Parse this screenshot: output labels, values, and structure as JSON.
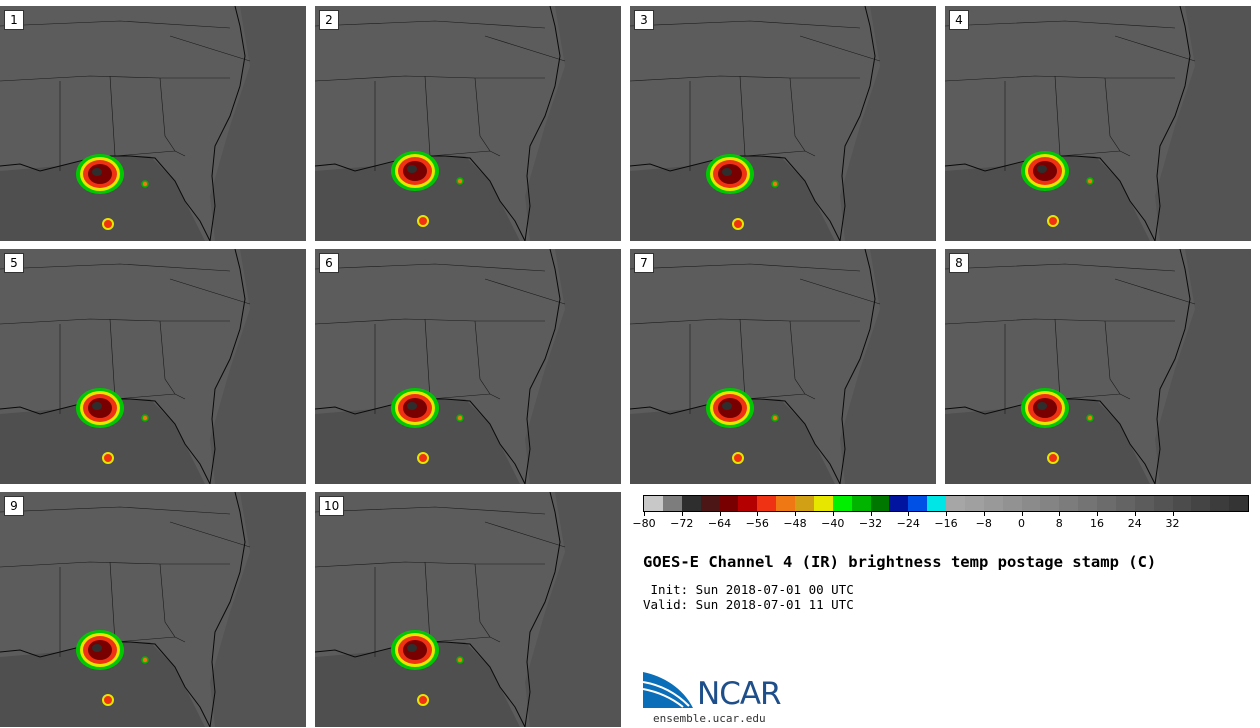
{
  "panels": [
    {
      "label": "1"
    },
    {
      "label": "2"
    },
    {
      "label": "3"
    },
    {
      "label": "4"
    },
    {
      "label": "5"
    },
    {
      "label": "6"
    },
    {
      "label": "7"
    },
    {
      "label": "8"
    },
    {
      "label": "9"
    },
    {
      "label": "10"
    }
  ],
  "colorbar": {
    "colors": [
      "#c8c8c8",
      "#7d7d7d",
      "#2e2e2e",
      "#4d1616",
      "#780000",
      "#b40000",
      "#f03214",
      "#f07814",
      "#d2a014",
      "#e6e600",
      "#00f000",
      "#00b400",
      "#007800",
      "#0014a0",
      "#0050e6",
      "#00e6e6",
      "#a6a6a6",
      "#a0a0a0",
      "#999999",
      "#929292",
      "#8b8b8b",
      "#848484",
      "#7c7c7c",
      "#747474",
      "#6c6c6c",
      "#646464",
      "#5c5c5c",
      "#545454",
      "#4c4c4c",
      "#444444",
      "#3c3c3c",
      "#343434"
    ],
    "tick_labels": [
      "−80",
      "−72",
      "−64",
      "−56",
      "−48",
      "−40",
      "−32",
      "−24",
      "−16",
      "−8",
      "0",
      "8",
      "16",
      "24",
      "32"
    ]
  },
  "title": "GOES-E Channel 4 (IR) brightness temp postage stamp (C)",
  "init": " Init: Sun 2018-07-01 00 UTC",
  "valid": "Valid: Sun 2018-07-01 11 UTC",
  "logo": {
    "text": "NCAR",
    "url": "ensemble.ucar.edu"
  }
}
